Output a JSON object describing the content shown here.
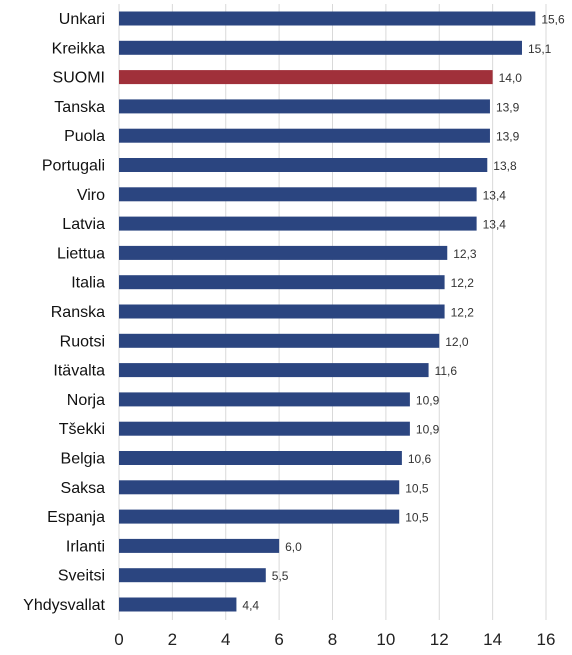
{
  "chart_data": {
    "type": "bar",
    "orientation": "horizontal",
    "categories": [
      "Unkari",
      "Kreikka",
      "SUOMI",
      "Tanska",
      "Puola",
      "Portugali",
      "Viro",
      "Latvia",
      "Liettua",
      "Italia",
      "Ranska",
      "Ruotsi",
      "Itävalta",
      "Norja",
      "Tšekki",
      "Belgia",
      "Saksa",
      "Espanja",
      "Irlanti",
      "Sveitsi",
      "Yhdysvallat"
    ],
    "values": [
      15.6,
      15.1,
      14.0,
      13.9,
      13.9,
      13.8,
      13.4,
      13.4,
      12.3,
      12.2,
      12.2,
      12.0,
      11.6,
      10.9,
      10.9,
      10.6,
      10.5,
      10.5,
      6.0,
      5.5,
      4.4
    ],
    "value_labels": [
      "15,6",
      "15,1",
      "14,0",
      "13,9",
      "13,9",
      "13,8",
      "13,4",
      "13,4",
      "12,3",
      "12,2",
      "12,2",
      "12,0",
      "11,6",
      "10,9",
      "10,9",
      "10,6",
      "10,5",
      "10,5",
      "6,0",
      "5,5",
      "4,4"
    ],
    "highlight": "SUOMI",
    "bar_color": "#2b4580",
    "highlight_color": "#a0303a",
    "xlim": [
      0,
      16
    ],
    "xticks": [
      "0",
      "2",
      "4",
      "6",
      "8",
      "10",
      "12",
      "14",
      "16"
    ],
    "grid": true,
    "title": "",
    "xlabel": "",
    "ylabel": ""
  }
}
